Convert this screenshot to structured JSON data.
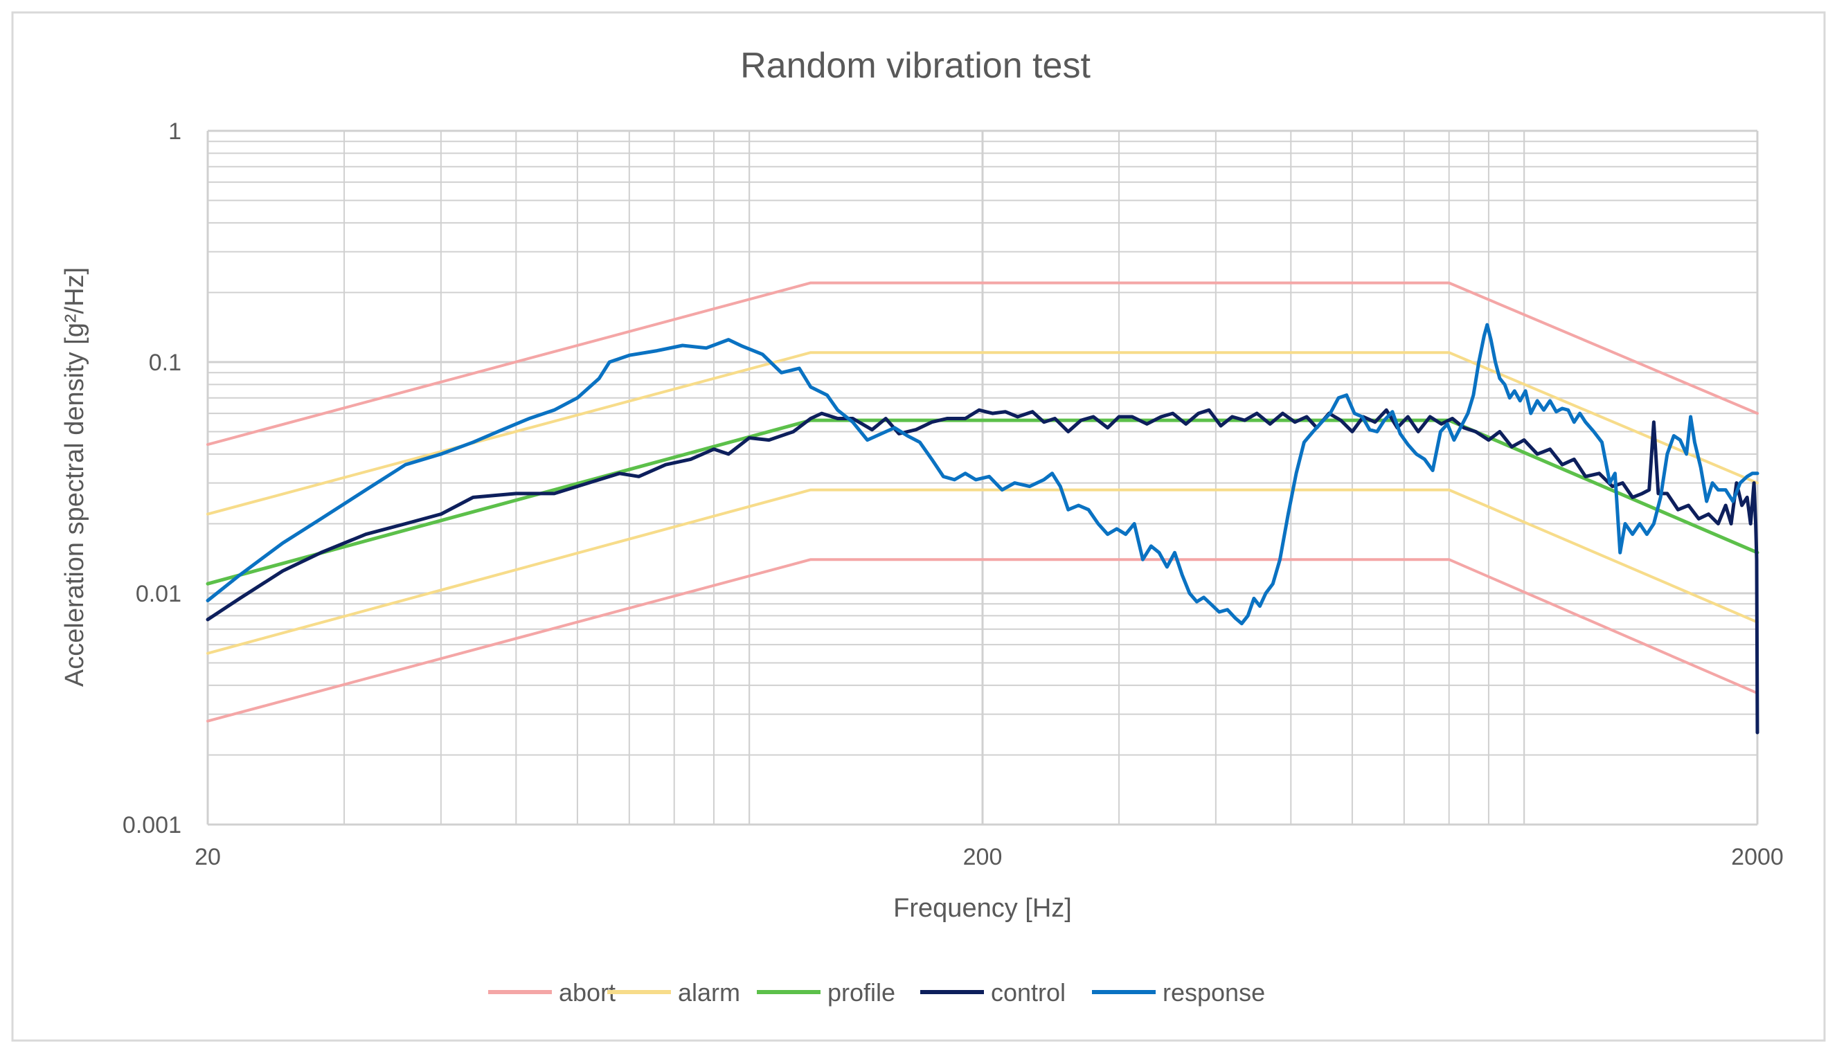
{
  "chart_data": {
    "type": "line",
    "title": "Random vibration test",
    "xlabel": "Frequency [Hz]",
    "ylabel": "Acceleration spectral density [g²/Hz]",
    "x_scale": "log",
    "y_scale": "log",
    "xlim": [
      20,
      2000
    ],
    "ylim": [
      0.001,
      1
    ],
    "x_ticks": [
      {
        "value": 20,
        "label": "20"
      },
      {
        "value": 200,
        "label": "200"
      },
      {
        "value": 2000,
        "label": "2000"
      }
    ],
    "y_ticks": [
      {
        "value": 1,
        "label": "1"
      },
      {
        "value": 0.1,
        "label": "0.1"
      },
      {
        "value": 0.01,
        "label": "0.01"
      },
      {
        "value": 0.001,
        "label": "0.001"
      }
    ],
    "grid": true,
    "legend_position": "bottom",
    "series": [
      {
        "name": "abort",
        "color": "#f4a6a6",
        "width": 4,
        "points": [
          [
            20,
            0.044
          ],
          [
            120,
            0.22
          ],
          [
            800,
            0.22
          ],
          [
            2000,
            0.06
          ]
        ]
      },
      {
        "name": "abort",
        "color": "#f4a6a6",
        "width": 4,
        "legend": false,
        "points": [
          [
            20,
            0.0028
          ],
          [
            120,
            0.014
          ],
          [
            800,
            0.014
          ],
          [
            2000,
            0.0037
          ]
        ]
      },
      {
        "name": "alarm",
        "color": "#f7dc8a",
        "width": 4,
        "points": [
          [
            20,
            0.022
          ],
          [
            120,
            0.11
          ],
          [
            800,
            0.11
          ],
          [
            2000,
            0.03
          ]
        ]
      },
      {
        "name": "alarm",
        "color": "#f7dc8a",
        "width": 4,
        "legend": false,
        "points": [
          [
            20,
            0.0055
          ],
          [
            120,
            0.028
          ],
          [
            800,
            0.028
          ],
          [
            2000,
            0.0075
          ]
        ]
      },
      {
        "name": "profile",
        "color": "#5cc04a",
        "width": 5,
        "points": [
          [
            20,
            0.011
          ],
          [
            120,
            0.056
          ],
          [
            800,
            0.056
          ],
          [
            2000,
            0.015
          ]
        ]
      },
      {
        "name": "control",
        "color": "#0d1f5c",
        "width": 5,
        "points": [
          [
            20,
            0.0077
          ],
          [
            22,
            0.0095
          ],
          [
            25,
            0.0125
          ],
          [
            28,
            0.015
          ],
          [
            32,
            0.018
          ],
          [
            36,
            0.02
          ],
          [
            40,
            0.022
          ],
          [
            44,
            0.026
          ],
          [
            50,
            0.027
          ],
          [
            56,
            0.027
          ],
          [
            62,
            0.03
          ],
          [
            68,
            0.033
          ],
          [
            72,
            0.032
          ],
          [
            78,
            0.036
          ],
          [
            84,
            0.038
          ],
          [
            90,
            0.042
          ],
          [
            94,
            0.04
          ],
          [
            100,
            0.047
          ],
          [
            106,
            0.046
          ],
          [
            114,
            0.05
          ],
          [
            120,
            0.057
          ],
          [
            124,
            0.06
          ],
          [
            130,
            0.057
          ],
          [
            136,
            0.057
          ],
          [
            144,
            0.051
          ],
          [
            150,
            0.057
          ],
          [
            156,
            0.049
          ],
          [
            164,
            0.051
          ],
          [
            172,
            0.055
          ],
          [
            180,
            0.057
          ],
          [
            190,
            0.057
          ],
          [
            198,
            0.062
          ],
          [
            206,
            0.06
          ],
          [
            214,
            0.061
          ],
          [
            222,
            0.058
          ],
          [
            232,
            0.061
          ],
          [
            240,
            0.055
          ],
          [
            248,
            0.057
          ],
          [
            258,
            0.05
          ],
          [
            268,
            0.056
          ],
          [
            278,
            0.058
          ],
          [
            290,
            0.052
          ],
          [
            300,
            0.058
          ],
          [
            312,
            0.058
          ],
          [
            326,
            0.054
          ],
          [
            340,
            0.058
          ],
          [
            352,
            0.06
          ],
          [
            366,
            0.054
          ],
          [
            380,
            0.06
          ],
          [
            392,
            0.062
          ],
          [
            406,
            0.053
          ],
          [
            420,
            0.058
          ],
          [
            436,
            0.056
          ],
          [
            452,
            0.06
          ],
          [
            470,
            0.054
          ],
          [
            488,
            0.06
          ],
          [
            506,
            0.055
          ],
          [
            524,
            0.058
          ],
          [
            540,
            0.052
          ],
          [
            560,
            0.06
          ],
          [
            580,
            0.056
          ],
          [
            600,
            0.05
          ],
          [
            620,
            0.058
          ],
          [
            642,
            0.055
          ],
          [
            664,
            0.062
          ],
          [
            686,
            0.052
          ],
          [
            708,
            0.058
          ],
          [
            730,
            0.05
          ],
          [
            756,
            0.058
          ],
          [
            782,
            0.054
          ],
          [
            808,
            0.057
          ],
          [
            836,
            0.052
          ],
          [
            866,
            0.05
          ],
          [
            900,
            0.046
          ],
          [
            930,
            0.05
          ],
          [
            964,
            0.043
          ],
          [
            1000,
            0.046
          ],
          [
            1040,
            0.04
          ],
          [
            1080,
            0.042
          ],
          [
            1120,
            0.036
          ],
          [
            1160,
            0.038
          ],
          [
            1200,
            0.032
          ],
          [
            1250,
            0.033
          ],
          [
            1300,
            0.029
          ],
          [
            1340,
            0.03
          ],
          [
            1380,
            0.026
          ],
          [
            1420,
            0.027
          ],
          [
            1450,
            0.028
          ],
          [
            1470,
            0.055
          ],
          [
            1490,
            0.027
          ],
          [
            1530,
            0.027
          ],
          [
            1580,
            0.023
          ],
          [
            1630,
            0.024
          ],
          [
            1680,
            0.021
          ],
          [
            1730,
            0.022
          ],
          [
            1780,
            0.02
          ],
          [
            1820,
            0.024
          ],
          [
            1850,
            0.02
          ],
          [
            1880,
            0.03
          ],
          [
            1910,
            0.024
          ],
          [
            1940,
            0.026
          ],
          [
            1960,
            0.02
          ],
          [
            1980,
            0.03
          ],
          [
            1990,
            0.02
          ],
          [
            1996,
            0.014
          ],
          [
            2000,
            0.0025
          ]
        ]
      },
      {
        "name": "response",
        "color": "#0a72c2",
        "width": 5,
        "points": [
          [
            20,
            0.0093
          ],
          [
            22,
            0.012
          ],
          [
            25,
            0.0165
          ],
          [
            28,
            0.021
          ],
          [
            32,
            0.028
          ],
          [
            36,
            0.036
          ],
          [
            40,
            0.04
          ],
          [
            44,
            0.045
          ],
          [
            48,
            0.051
          ],
          [
            52,
            0.057
          ],
          [
            56,
            0.062
          ],
          [
            60,
            0.07
          ],
          [
            64,
            0.085
          ],
          [
            66,
            0.1
          ],
          [
            70,
            0.107
          ],
          [
            76,
            0.112
          ],
          [
            82,
            0.118
          ],
          [
            88,
            0.115
          ],
          [
            94,
            0.125
          ],
          [
            98,
            0.117
          ],
          [
            104,
            0.108
          ],
          [
            110,
            0.09
          ],
          [
            116,
            0.094
          ],
          [
            120,
            0.078
          ],
          [
            126,
            0.072
          ],
          [
            130,
            0.062
          ],
          [
            136,
            0.055
          ],
          [
            142,
            0.046
          ],
          [
            148,
            0.049
          ],
          [
            154,
            0.052
          ],
          [
            160,
            0.048
          ],
          [
            166,
            0.045
          ],
          [
            172,
            0.038
          ],
          [
            178,
            0.032
          ],
          [
            184,
            0.031
          ],
          [
            190,
            0.033
          ],
          [
            196,
            0.031
          ],
          [
            204,
            0.032
          ],
          [
            212,
            0.028
          ],
          [
            220,
            0.03
          ],
          [
            230,
            0.029
          ],
          [
            240,
            0.031
          ],
          [
            246,
            0.033
          ],
          [
            252,
            0.029
          ],
          [
            258,
            0.023
          ],
          [
            266,
            0.024
          ],
          [
            274,
            0.023
          ],
          [
            282,
            0.02
          ],
          [
            290,
            0.018
          ],
          [
            298,
            0.019
          ],
          [
            306,
            0.018
          ],
          [
            314,
            0.02
          ],
          [
            322,
            0.014
          ],
          [
            330,
            0.016
          ],
          [
            338,
            0.015
          ],
          [
            346,
            0.013
          ],
          [
            354,
            0.015
          ],
          [
            362,
            0.012
          ],
          [
            370,
            0.01
          ],
          [
            378,
            0.0092
          ],
          [
            386,
            0.0096
          ],
          [
            394,
            0.009
          ],
          [
            404,
            0.0083
          ],
          [
            414,
            0.0085
          ],
          [
            424,
            0.0078
          ],
          [
            432,
            0.0074
          ],
          [
            440,
            0.008
          ],
          [
            448,
            0.0095
          ],
          [
            456,
            0.0088
          ],
          [
            464,
            0.01
          ],
          [
            474,
            0.011
          ],
          [
            484,
            0.014
          ],
          [
            496,
            0.022
          ],
          [
            508,
            0.033
          ],
          [
            520,
            0.045
          ],
          [
            534,
            0.05
          ],
          [
            548,
            0.055
          ],
          [
            562,
            0.06
          ],
          [
            576,
            0.07
          ],
          [
            590,
            0.072
          ],
          [
            604,
            0.06
          ],
          [
            618,
            0.058
          ],
          [
            632,
            0.051
          ],
          [
            646,
            0.05
          ],
          [
            660,
            0.056
          ],
          [
            676,
            0.061
          ],
          [
            692,
            0.049
          ],
          [
            708,
            0.044
          ],
          [
            726,
            0.04
          ],
          [
            744,
            0.038
          ],
          [
            762,
            0.034
          ],
          [
            780,
            0.05
          ],
          [
            796,
            0.054
          ],
          [
            812,
            0.046
          ],
          [
            830,
            0.053
          ],
          [
            846,
            0.06
          ],
          [
            860,
            0.072
          ],
          [
            874,
            0.1
          ],
          [
            888,
            0.13
          ],
          [
            896,
            0.145
          ],
          [
            906,
            0.125
          ],
          [
            918,
            0.1
          ],
          [
            930,
            0.085
          ],
          [
            944,
            0.08
          ],
          [
            958,
            0.07
          ],
          [
            972,
            0.075
          ],
          [
            988,
            0.068
          ],
          [
            1004,
            0.075
          ],
          [
            1020,
            0.06
          ],
          [
            1040,
            0.068
          ],
          [
            1060,
            0.062
          ],
          [
            1080,
            0.068
          ],
          [
            1100,
            0.061
          ],
          [
            1120,
            0.063
          ],
          [
            1140,
            0.062
          ],
          [
            1160,
            0.055
          ],
          [
            1180,
            0.06
          ],
          [
            1200,
            0.055
          ],
          [
            1230,
            0.05
          ],
          [
            1260,
            0.045
          ],
          [
            1290,
            0.03
          ],
          [
            1310,
            0.033
          ],
          [
            1330,
            0.015
          ],
          [
            1350,
            0.02
          ],
          [
            1380,
            0.018
          ],
          [
            1410,
            0.02
          ],
          [
            1440,
            0.018
          ],
          [
            1470,
            0.02
          ],
          [
            1500,
            0.026
          ],
          [
            1530,
            0.04
          ],
          [
            1560,
            0.048
          ],
          [
            1590,
            0.046
          ],
          [
            1620,
            0.04
          ],
          [
            1640,
            0.058
          ],
          [
            1660,
            0.045
          ],
          [
            1690,
            0.035
          ],
          [
            1720,
            0.025
          ],
          [
            1750,
            0.03
          ],
          [
            1780,
            0.028
          ],
          [
            1820,
            0.028
          ],
          [
            1860,
            0.025
          ],
          [
            1900,
            0.03
          ],
          [
            1940,
            0.032
          ],
          [
            1970,
            0.033
          ],
          [
            2000,
            0.033
          ]
        ]
      }
    ],
    "legend": [
      {
        "name": "abort",
        "color": "#f4a6a6"
      },
      {
        "name": "alarm",
        "color": "#f7dc8a"
      },
      {
        "name": "profile",
        "color": "#5cc04a"
      },
      {
        "name": "control",
        "color": "#0d1f5c"
      },
      {
        "name": "response",
        "color": "#0a72c2"
      }
    ]
  }
}
